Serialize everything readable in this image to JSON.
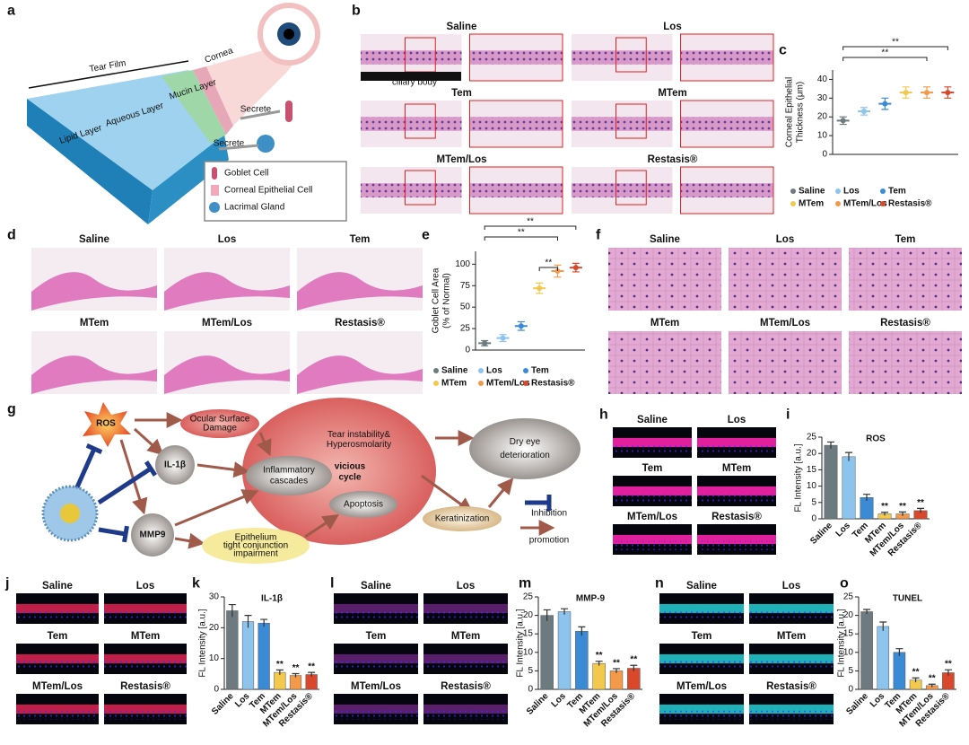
{
  "panel_labels": [
    "a",
    "b",
    "c",
    "d",
    "e",
    "f",
    "g",
    "h",
    "i",
    "j",
    "k",
    "l",
    "m",
    "n",
    "o"
  ],
  "schematic": {
    "tear_film": "Tear Film",
    "cornea": "Cornea",
    "mucin": "Mucin Layer",
    "aqueous": "Aqueous Layer",
    "lipid": "Lipid Layer",
    "secrete": [
      "Secrete",
      "Secrete"
    ],
    "legend": [
      "Goblet Cell",
      "Corneal Epithelial Cell",
      "Lacrimal Gland"
    ]
  },
  "histology_b": {
    "groups": [
      "Saline",
      "Los",
      "Tem",
      "MTem",
      "MTem/Los",
      "Restasis®"
    ],
    "annotation": "ciliary body"
  },
  "histology_d": {
    "groups": [
      "Saline",
      "Los",
      "Tem",
      "MTem",
      "MTem/Los",
      "Restasis®"
    ]
  },
  "histology_f": {
    "groups": [
      "Saline",
      "Los",
      "Tem",
      "MTem",
      "MTem/Los",
      "Restasis®"
    ]
  },
  "fluorescence_h": {
    "groups": [
      "Saline",
      "Los",
      "Tem",
      "MTem",
      "MTem/Los",
      "Restasis®"
    ]
  },
  "fluorescence_j": {
    "groups": [
      "Saline",
      "Los",
      "Tem",
      "MTem",
      "MTem/Los",
      "Restasis®"
    ]
  },
  "fluorescence_l": {
    "groups": [
      "Saline",
      "Los",
      "Tem",
      "MTem",
      "MTem/Los",
      "Restasis®"
    ]
  },
  "fluorescence_n": {
    "groups": [
      "Saline",
      "Los",
      "Tem",
      "MTem",
      "MTem/Los",
      "Restasis®"
    ]
  },
  "mechanism": {
    "ros": "ROS",
    "il1b": "IL-1β",
    "mmp9": "MMP9",
    "ocular": [
      "Ocular Surface",
      "Damage"
    ],
    "inflammatory": [
      "Inflammatory",
      "cascades"
    ],
    "vicious": [
      "vicious",
      "cycle"
    ],
    "tear": [
      "Tear instability&",
      "Hyperosmolarity"
    ],
    "apoptosis": "Apoptosis",
    "epithelium": [
      "Epithelium",
      "tight conjunction",
      "impairment"
    ],
    "keratinization": "Keratinization",
    "dry_eye": [
      "Dry eye",
      "deterioration"
    ],
    "legend": [
      "Inhibition",
      "promotion"
    ]
  },
  "chart_data": [
    {
      "type": "dot",
      "ylabel": [
        "Corneal Epithelial",
        "Thickness (μm)"
      ],
      "categories": [
        "Saline",
        "Los",
        "Tem",
        "MTem",
        "MTem/Los",
        "Restasis®"
      ],
      "colors": [
        "#6d7b80",
        "#8cc4ee",
        "#3a8ad6",
        "#f2c94c",
        "#f29a4a",
        "#d9482b"
      ],
      "values": [
        18,
        23,
        27,
        33,
        33,
        33
      ],
      "errors": [
        2,
        2,
        3,
        3,
        3,
        3
      ],
      "ylim": [
        0,
        45
      ],
      "yticks": [
        0,
        10,
        20,
        30,
        40
      ],
      "legend": "bottom",
      "brackets": [
        {
          "label": "**",
          "span": [
            0,
            5
          ]
        },
        {
          "label": "**",
          "span": [
            0,
            4
          ]
        }
      ]
    },
    {
      "type": "dot",
      "ylabel": [
        "Goblet Cell Area",
        "(% of Normal)"
      ],
      "categories": [
        "Saline",
        "Los",
        "Tem",
        "MTem",
        "MTem/Los",
        "Restasis®"
      ],
      "colors": [
        "#6d7b80",
        "#8cc4ee",
        "#3a8ad6",
        "#f2c94c",
        "#f29a4a",
        "#d9482b"
      ],
      "values": [
        8,
        14,
        28,
        72,
        92,
        96
      ],
      "errors": [
        3,
        4,
        5,
        6,
        7,
        5
      ],
      "ylim": [
        0,
        115
      ],
      "yticks": [
        0,
        25,
        50,
        75,
        100
      ],
      "legend": "bottom",
      "brackets": [
        {
          "label": "**",
          "span": [
            0,
            5
          ]
        },
        {
          "label": "**",
          "span": [
            0,
            4
          ]
        },
        {
          "label": "**",
          "span": [
            3,
            4
          ]
        }
      ]
    },
    {
      "type": "bar",
      "title": "ROS",
      "ylabel": [
        "FL Intensity [a.u.]"
      ],
      "categories": [
        "Saline",
        "Los",
        "Tem",
        "MTem",
        "MTem/Los",
        "Restasis®"
      ],
      "colors": [
        "#6d7b80",
        "#8cc4ee",
        "#3a8ad6",
        "#f2c94c",
        "#f29a4a",
        "#d9482b"
      ],
      "values": [
        22.5,
        19,
        6.5,
        1.5,
        1.5,
        2.5
      ],
      "errors": [
        1,
        1.3,
        1,
        0.5,
        0.6,
        0.7
      ],
      "ylim": [
        0,
        25
      ],
      "yticks": [
        0,
        5,
        10,
        15,
        20,
        25
      ],
      "annotations": [
        null,
        null,
        null,
        "**",
        "**",
        "**"
      ]
    },
    {
      "type": "bar",
      "title": "IL-1β",
      "ylabel": [
        "FL Intensity [a.u.]"
      ],
      "categories": [
        "Saline",
        "Los",
        "Tem",
        "MTem",
        "MTem/Los",
        "Restasis®"
      ],
      "colors": [
        "#6d7b80",
        "#8cc4ee",
        "#3a8ad6",
        "#f2c94c",
        "#f29a4a",
        "#d9482b"
      ],
      "values": [
        25.5,
        22,
        21.5,
        5.5,
        4.5,
        4.8
      ],
      "errors": [
        2,
        2,
        1.2,
        0.8,
        0.6,
        0.7
      ],
      "ylim": [
        0,
        30
      ],
      "yticks": [
        0,
        10,
        20,
        30
      ],
      "annotations": [
        null,
        null,
        null,
        "**",
        "**",
        "**"
      ]
    },
    {
      "type": "bar",
      "title": "MMP-9",
      "ylabel": [
        "FL Intensity [a.u.]"
      ],
      "categories": [
        "Saline",
        "Los",
        "Tem",
        "MTem",
        "MTem/Los",
        "Restasis®"
      ],
      "colors": [
        "#6d7b80",
        "#8cc4ee",
        "#3a8ad6",
        "#f2c94c",
        "#f29a4a",
        "#d9482b"
      ],
      "values": [
        20,
        21,
        15.7,
        7,
        5,
        5.7
      ],
      "errors": [
        1.5,
        0.8,
        1.2,
        0.6,
        0.6,
        0.8
      ],
      "ylim": [
        0,
        25
      ],
      "yticks": [
        0,
        5,
        10,
        15,
        20,
        25
      ],
      "annotations": [
        null,
        null,
        null,
        "**",
        "**",
        "**"
      ]
    },
    {
      "type": "bar",
      "title": "TUNEL",
      "ylabel": [
        "FL Intensity [a.u.]"
      ],
      "categories": [
        "Saline",
        "Los",
        "Tem",
        "MTem",
        "MTem/Los",
        "Restasis®"
      ],
      "colors": [
        "#6d7b80",
        "#8cc4ee",
        "#3a8ad6",
        "#f2c94c",
        "#f29a4a",
        "#d9482b"
      ],
      "values": [
        21,
        17,
        10,
        2.5,
        1,
        4.5
      ],
      "errors": [
        0.6,
        1.2,
        1,
        0.6,
        0.4,
        0.8
      ],
      "ylim": [
        0,
        25
      ],
      "yticks": [
        0,
        5,
        10,
        15,
        20,
        25
      ],
      "annotations": [
        null,
        null,
        null,
        "**",
        "**",
        "**"
      ]
    }
  ]
}
